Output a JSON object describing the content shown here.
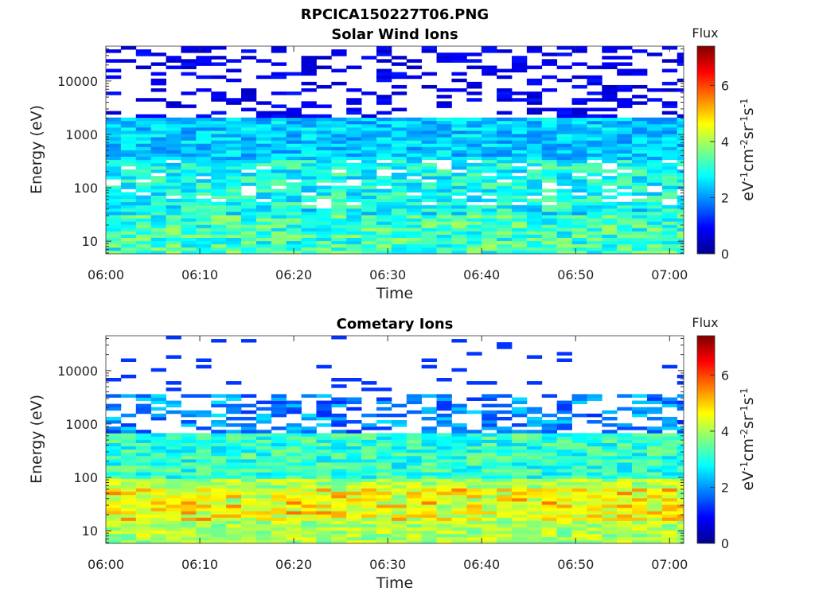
{
  "figure_title": "RPCICA150227T06.PNG",
  "chart_data": [
    {
      "type": "heatmap",
      "title": "Solar Wind Ions",
      "xlabel": "Time",
      "ylabel": "Energy (eV)",
      "x_ticks": [
        "06:00",
        "06:10",
        "06:20",
        "06:30",
        "06:40",
        "06:50",
        "07:00"
      ],
      "x_range_minutes": [
        0,
        61.5
      ],
      "y_scale": "log",
      "y_range": [
        5.8,
        45000
      ],
      "y_ticks": [
        {
          "value": 10,
          "label": "10"
        },
        {
          "value": 100,
          "label": "100"
        },
        {
          "value": 1000,
          "label": "1000"
        },
        {
          "value": 10000,
          "label": "10000"
        }
      ],
      "colorbar": {
        "label": "Flux",
        "unit_label": "eV-1cm-2sr-1s-1",
        "range": [
          0,
          7.4
        ],
        "ticks": [
          "0",
          "2",
          "4",
          "6"
        ],
        "colormap": "jet"
      },
      "time_step_minutes": 1.6,
      "low_energy_boost": 0.8
    },
    {
      "type": "heatmap",
      "title": "Cometary Ions",
      "xlabel": "Time",
      "ylabel": "Energy (eV)",
      "x_ticks": [
        "06:00",
        "06:10",
        "06:20",
        "06:30",
        "06:40",
        "06:50",
        "07:00"
      ],
      "x_range_minutes": [
        0,
        61.5
      ],
      "y_scale": "log",
      "y_range": [
        5.8,
        45000
      ],
      "y_ticks": [
        {
          "value": 10,
          "label": "10"
        },
        {
          "value": 100,
          "label": "100"
        },
        {
          "value": 1000,
          "label": "1000"
        },
        {
          "value": 10000,
          "label": "10000"
        }
      ],
      "colorbar": {
        "label": "Flux",
        "unit_label": "eV-1cm-2sr-1s-1",
        "range": [
          0,
          7.4
        ],
        "ticks": [
          "0",
          "2",
          "4",
          "6"
        ],
        "colormap": "jet"
      },
      "time_step_minutes": 1.6,
      "low_energy_boost": 2.4
    }
  ]
}
